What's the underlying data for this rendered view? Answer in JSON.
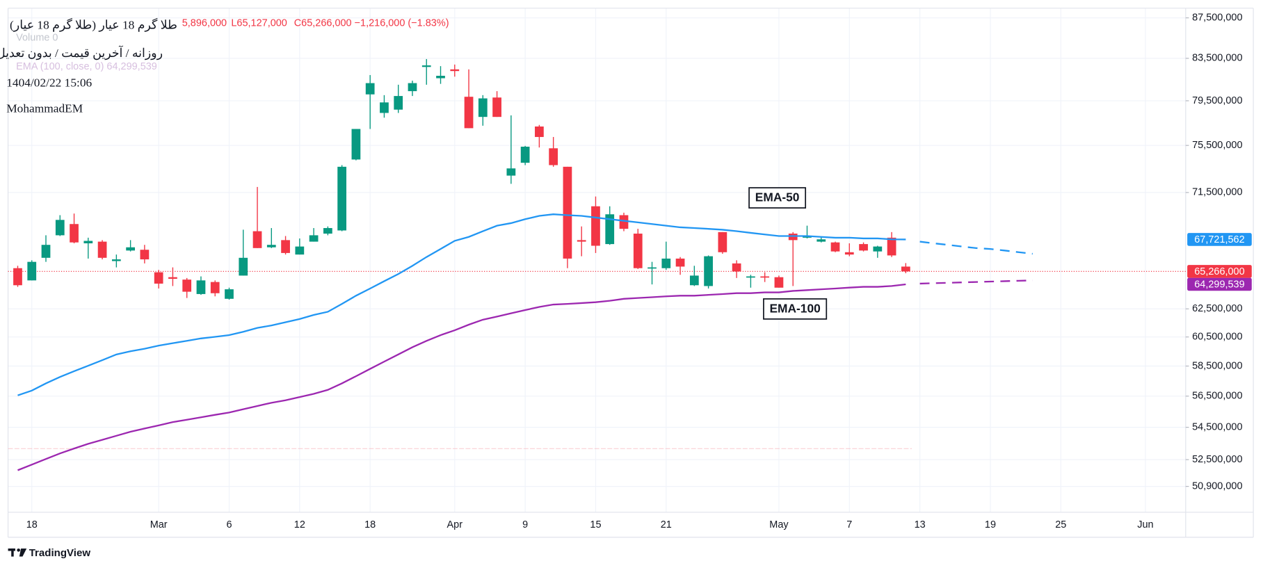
{
  "chart_data": {
    "type": "candlestick",
    "title": "طلا گرم 18 عیار (طلا گرم 18 عیار)",
    "subtitle": "روزانه / آخرین قیمت / بدون تعدیل",
    "timestamp": "1404/02/22 15:06",
    "author": "MohammadEM",
    "legend_texts": [
      "5,896,000",
      "L65,127,000",
      "C65,266,000",
      "−1,216,000 (−1.83%)"
    ],
    "volume_label": "Volume  0",
    "indicator_label": "EMA (100, close, 0)  64,299,539",
    "brand": "TradingView",
    "categories": [
      null,
      "18",
      null,
      null,
      null,
      null,
      null,
      null,
      null,
      null,
      "Mar",
      null,
      null,
      null,
      null,
      "6",
      null,
      null,
      null,
      null,
      "12",
      null,
      null,
      null,
      null,
      "18",
      null,
      null,
      null,
      null,
      null,
      "Apr",
      null,
      null,
      null,
      null,
      "9",
      null,
      null,
      null,
      null,
      "15",
      null,
      null,
      null,
      null,
      "21",
      null,
      null,
      null,
      null,
      null,
      null,
      null,
      "May",
      null,
      null,
      null,
      null,
      "7",
      null,
      null,
      null,
      null,
      "13",
      null,
      null,
      null,
      null,
      "19",
      null,
      null,
      null,
      null,
      "25",
      null,
      null,
      null,
      null,
      null,
      "Jun",
      null,
      null
    ],
    "open": [
      65510000,
      64590000,
      66300000,
      68050000,
      68940000,
      67420000,
      67550000,
      66050000,
      66860000,
      66920000,
      65200000,
      64830000,
      64650000,
      63580000,
      64470000,
      63230000,
      64950000,
      68370000,
      67110000,
      67670000,
      66550000,
      67550000,
      68180000,
      68430000,
      74280000,
      80090000,
      78390000,
      78690000,
      80390000,
      82670000,
      81600000,
      82440000,
      79870000,
      78030000,
      79800000,
      72910000,
      74000000,
      77170000,
      75250000,
      73660000,
      67670000,
      70370000,
      67360000,
      69650000,
      68180000,
      65510000,
      65510000,
      66240000,
      64230000,
      64170000,
      68300000,
      65870000,
      64830000,
      64890000,
      64830000,
      68180000,
      67860000,
      67550000,
      67490000,
      66730000,
      67360000,
      66790000,
      67860000,
      65630000,
      null,
      null,
      null,
      null,
      null,
      null,
      null,
      null,
      null,
      null,
      null,
      null,
      null,
      null,
      null,
      null,
      null,
      null,
      null
    ],
    "high": [
      65690000,
      66110000,
      68050000,
      69650000,
      69780000,
      67860000,
      67670000,
      66550000,
      67670000,
      67300000,
      65380000,
      65570000,
      64770000,
      64890000,
      64590000,
      64050000,
      68490000,
      71960000,
      68620000,
      67990000,
      67800000,
      68620000,
      68750000,
      73800000,
      76950000,
      81900000,
      80020000,
      80990000,
      81370000,
      83430000,
      82750000,
      82900000,
      82440000,
      80020000,
      80390000,
      78170000,
      75460000,
      77310000,
      76240000,
      73660000,
      68750000,
      71170000,
      70370000,
      69850000,
      68560000,
      65990000,
      67550000,
      66360000,
      65690000,
      66480000,
      68300000,
      66110000,
      65010000,
      65200000,
      64950000,
      68300000,
      68810000,
      67920000,
      67550000,
      67420000,
      67490000,
      67230000,
      68300000,
      65896000,
      null,
      null,
      null,
      null,
      null,
      null,
      null,
      null,
      null,
      null,
      null,
      null,
      null,
      null,
      null,
      null,
      null,
      null,
      null
    ],
    "low": [
      64110000,
      64590000,
      65990000,
      67990000,
      67420000,
      66240000,
      66180000,
      65570000,
      66790000,
      65870000,
      63990000,
      64170000,
      63290000,
      63520000,
      63410000,
      63170000,
      64950000,
      67050000,
      67050000,
      66550000,
      66550000,
      67550000,
      68050000,
      68370000,
      74210000,
      76950000,
      77960000,
      78390000,
      79940000,
      80990000,
      81070000,
      81750000,
      77020000,
      77240000,
      78030000,
      72220000,
      73800000,
      75320000,
      73660000,
      65510000,
      66420000,
      66670000,
      67300000,
      68370000,
      65450000,
      64290000,
      65380000,
      65010000,
      64170000,
      63990000,
      66610000,
      64770000,
      64050000,
      64470000,
      64050000,
      64170000,
      67800000,
      67490000,
      66730000,
      66420000,
      66790000,
      66300000,
      66360000,
      65127000,
      null,
      null,
      null,
      null,
      null,
      null,
      null,
      null,
      null,
      null,
      null,
      null,
      null,
      null,
      null,
      null,
      null,
      null,
      null
    ],
    "close": [
      64230000,
      65990000,
      67300000,
      69270000,
      67490000,
      67610000,
      66300000,
      66180000,
      67110000,
      66180000,
      64350000,
      64710000,
      63750000,
      64590000,
      63640000,
      63930000,
      66300000,
      67050000,
      67300000,
      66670000,
      67170000,
      68050000,
      68620000,
      73660000,
      76950000,
      81140000,
      79350000,
      79940000,
      81140000,
      82820000,
      81830000,
      82280000,
      77020000,
      79720000,
      78030000,
      73520000,
      75390000,
      76240000,
      73800000,
      66240000,
      67550000,
      67230000,
      69720000,
      68560000,
      65510000,
      65570000,
      66240000,
      65630000,
      64950000,
      66420000,
      66730000,
      65260000,
      64890000,
      64830000,
      64050000,
      67670000,
      67990000,
      67730000,
      66790000,
      66550000,
      66860000,
      67170000,
      66482000,
      65266000,
      null,
      null,
      null,
      null,
      null,
      null,
      null,
      null,
      null,
      null,
      null,
      null,
      null,
      null,
      null,
      null,
      null,
      null,
      null
    ],
    "up_color": "#089981",
    "down_color": "#f23645",
    "series": [
      {
        "name": "EMA-50",
        "color": "#2196f3",
        "last_label": "67,721,562",
        "values": [
          56550000,
          56860000,
          57340000,
          57770000,
          58150000,
          58520000,
          58900000,
          59290000,
          59510000,
          59680000,
          59900000,
          60070000,
          60230000,
          60400000,
          60510000,
          60630000,
          60860000,
          61140000,
          61310000,
          61540000,
          61770000,
          62060000,
          62290000,
          62860000,
          63460000,
          63990000,
          64530000,
          65070000,
          65690000,
          66360000,
          66980000,
          67610000,
          67920000,
          68370000,
          68810000,
          69010000,
          69330000,
          69590000,
          69720000,
          69650000,
          69590000,
          69460000,
          69330000,
          69200000,
          69070000,
          68940000,
          68810000,
          68680000,
          68620000,
          68560000,
          68490000,
          68370000,
          68240000,
          68110000,
          67990000,
          67990000,
          67990000,
          67920000,
          67860000,
          67860000,
          67800000,
          67800000,
          67730000,
          67721562,
          null,
          null,
          null,
          null,
          null,
          null,
          null,
          null,
          null,
          null,
          null,
          null,
          null,
          null,
          null,
          null,
          null,
          null,
          null
        ],
        "forecast": [
          null,
          null,
          null,
          null,
          null,
          null,
          null,
          null,
          null,
          null,
          null,
          null,
          null,
          null,
          null,
          null,
          null,
          null,
          null,
          null,
          null,
          null,
          null,
          null,
          null,
          null,
          null,
          null,
          null,
          null,
          null,
          null,
          null,
          null,
          null,
          null,
          null,
          null,
          null,
          null,
          null,
          null,
          null,
          null,
          null,
          null,
          null,
          null,
          null,
          null,
          null,
          null,
          null,
          null,
          null,
          null,
          null,
          null,
          null,
          null,
          null,
          null,
          null,
          null,
          67550000,
          67420000,
          67300000,
          67170000,
          67050000,
          66980000,
          66860000,
          66730000,
          66610000,
          null,
          null,
          null,
          null,
          null,
          null,
          null,
          null,
          null,
          null
        ]
      },
      {
        "name": "EMA-100",
        "color": "#9c27b0",
        "last_label": "64,299,539",
        "values": [
          51860000,
          52200000,
          52540000,
          52880000,
          53180000,
          53470000,
          53720000,
          53970000,
          54220000,
          54420000,
          54620000,
          54830000,
          54980000,
          55130000,
          55290000,
          55440000,
          55650000,
          55860000,
          56070000,
          56230000,
          56440000,
          56650000,
          56910000,
          57340000,
          57820000,
          58310000,
          58800000,
          59290000,
          59790000,
          60230000,
          60630000,
          60970000,
          61370000,
          61720000,
          61940000,
          62180000,
          62410000,
          62640000,
          62810000,
          62860000,
          62920000,
          62980000,
          63090000,
          63230000,
          63290000,
          63350000,
          63410000,
          63460000,
          63460000,
          63520000,
          63580000,
          63640000,
          63640000,
          63700000,
          63700000,
          63810000,
          63870000,
          63930000,
          63990000,
          64050000,
          64110000,
          64110000,
          64170000,
          64299539,
          null,
          null,
          null,
          null,
          null,
          null,
          null,
          null,
          null,
          null,
          null,
          null,
          null,
          null,
          null,
          null,
          null,
          null,
          null
        ],
        "forecast": [
          null,
          null,
          null,
          null,
          null,
          null,
          null,
          null,
          null,
          null,
          null,
          null,
          null,
          null,
          null,
          null,
          null,
          null,
          null,
          null,
          null,
          null,
          null,
          null,
          null,
          null,
          null,
          null,
          null,
          null,
          null,
          null,
          null,
          null,
          null,
          null,
          null,
          null,
          null,
          null,
          null,
          null,
          null,
          null,
          null,
          null,
          null,
          null,
          null,
          null,
          null,
          null,
          null,
          null,
          null,
          null,
          null,
          null,
          null,
          null,
          null,
          null,
          null,
          null,
          64350000,
          64380000,
          64410000,
          64440000,
          64470000,
          64500000,
          64530000,
          64560000,
          64590000,
          null,
          null,
          null,
          null,
          null,
          null,
          null,
          null,
          null,
          null
        ]
      }
    ],
    "last_price_label": "65,266,000",
    "log": true,
    "grid": true,
    "ylim": [
      49400000,
      88480000
    ],
    "yticks": [
      {
        "value": 87500000,
        "label": "87,500,000"
      },
      {
        "value": 83500000,
        "label": "83,500,000"
      },
      {
        "value": 79500000,
        "label": "79,500,000"
      },
      {
        "value": 75500000,
        "label": "75,500,000"
      },
      {
        "value": 71500000,
        "label": "71,500,000"
      },
      {
        "value": 62500000,
        "label": "62,500,000"
      },
      {
        "value": 60500000,
        "label": "60,500,000"
      },
      {
        "value": 58500000,
        "label": "58,500,000"
      },
      {
        "value": 56500000,
        "label": "56,500,000"
      },
      {
        "value": 54500000,
        "label": "54,500,000"
      },
      {
        "value": 52500000,
        "label": "52,500,000"
      },
      {
        "value": 50900000,
        "label": "50,900,000"
      }
    ]
  }
}
